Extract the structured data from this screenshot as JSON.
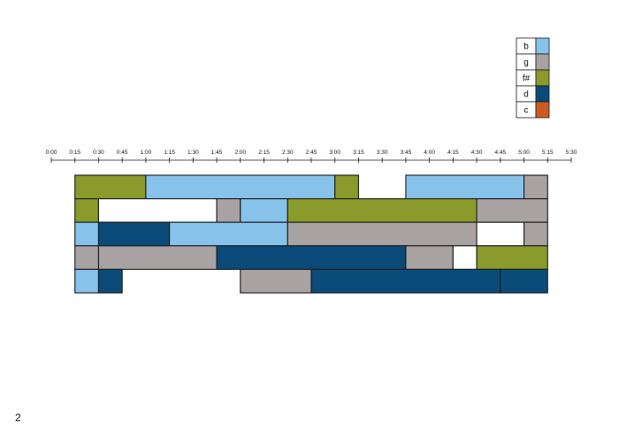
{
  "page_number": "2",
  "colors": {
    "b": "#86c2ea",
    "g": "#a8a2a3",
    "f#": "#8a9a2b",
    "d": "#0b4b79",
    "c": "#cc5a24",
    "rest": "#ffffff",
    "stroke": "#1a1a1a"
  },
  "chart_data": {
    "type": "bar",
    "orientation": "horizontal-timeline",
    "x_ticks": [
      "0:00",
      "0:15",
      "0:30",
      "0:45",
      "1:00",
      "1:15",
      "1:30",
      "1:45",
      "2:00",
      "2:15",
      "2:30",
      "2:45",
      "3:00",
      "3:15",
      "3:30",
      "3:45",
      "4:00",
      "4:15",
      "4:30",
      "4:45",
      "5:00",
      "5:15",
      "5:30"
    ],
    "xlim_minutes": [
      0,
      330
    ],
    "legend": [
      "b",
      "g",
      "f#",
      "d",
      "c"
    ],
    "legend_position": "top-right",
    "rows": [
      {
        "segments": [
          {
            "note": "f#",
            "start": 15,
            "end": 60
          },
          {
            "note": "b",
            "start": 60,
            "end": 180
          },
          {
            "note": "f#",
            "start": 180,
            "end": 195
          },
          {
            "note": "b",
            "start": 225,
            "end": 300
          },
          {
            "note": "g",
            "start": 300,
            "end": 315
          }
        ]
      },
      {
        "segments": [
          {
            "note": "f#",
            "start": 15,
            "end": 30
          },
          {
            "note": "rest",
            "start": 30,
            "end": 105
          },
          {
            "note": "g",
            "start": 105,
            "end": 120
          },
          {
            "note": "b",
            "start": 120,
            "end": 150
          },
          {
            "note": "f#",
            "start": 150,
            "end": 270
          },
          {
            "note": "g",
            "start": 270,
            "end": 315
          }
        ]
      },
      {
        "segments": [
          {
            "note": "b",
            "start": 15,
            "end": 30
          },
          {
            "note": "d",
            "start": 30,
            "end": 75
          },
          {
            "note": "b",
            "start": 75,
            "end": 150
          },
          {
            "note": "g",
            "start": 150,
            "end": 270
          },
          {
            "note": "rest",
            "start": 270,
            "end": 300
          },
          {
            "note": "g",
            "start": 300,
            "end": 315
          }
        ]
      },
      {
        "segments": [
          {
            "note": "g",
            "start": 15,
            "end": 30
          },
          {
            "note": "g",
            "start": 30,
            "end": 105
          },
          {
            "note": "d",
            "start": 105,
            "end": 225
          },
          {
            "note": "g",
            "start": 225,
            "end": 255
          },
          {
            "note": "rest",
            "start": 255,
            "end": 270
          },
          {
            "note": "f#",
            "start": 270,
            "end": 315
          }
        ]
      },
      {
        "segments": [
          {
            "note": "b",
            "start": 15,
            "end": 30
          },
          {
            "note": "d",
            "start": 30,
            "end": 45
          },
          {
            "note": "g",
            "start": 120,
            "end": 165
          },
          {
            "note": "d",
            "start": 165,
            "end": 285
          },
          {
            "note": "d",
            "start": 285,
            "end": 315
          }
        ]
      }
    ]
  }
}
